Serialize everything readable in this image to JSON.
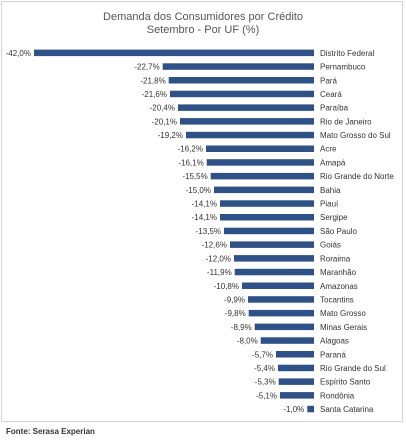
{
  "source": "Fonte: Serasa Experian",
  "chart_data": {
    "type": "bar",
    "orientation": "horizontal",
    "title": "Demanda dos Consumidores por Crédito",
    "subtitle": "Setembro - Por UF (%)",
    "color": "#2e5288",
    "xlim": [
      -42,
      0
    ],
    "categories": [
      "Distrito Federal",
      "Pernambuco",
      "Pará",
      "Ceará",
      "Paraíba",
      "Rio de Janeiro",
      "Mato Grosso do Sul",
      "Acre",
      "Amapá",
      "Rio Grande do Norte",
      "Bahia",
      "Piauí",
      "Sergipe",
      "São Paulo",
      "Goiás",
      "Roraima",
      "Maranhão",
      "Amazonas",
      "Tocantins",
      "Mato Grosso",
      "Minas Gerais",
      "Alagoas",
      "Paraná",
      "Rio Grande do Sul",
      "Espírito Santo",
      "Rondônia",
      "Santa Catarina"
    ],
    "values": [
      -42.0,
      -22.7,
      -21.8,
      -21.6,
      -20.4,
      -20.1,
      -19.2,
      -16.2,
      -16.1,
      -15.5,
      -15.0,
      -14.1,
      -14.1,
      -13.5,
      -12.6,
      -12.0,
      -11.9,
      -10.8,
      -9.9,
      -9.8,
      -8.9,
      -8.0,
      -5.7,
      -5.4,
      -5.3,
      -5.1,
      -1.0
    ],
    "labels": [
      "-42,0%",
      "-22,7%",
      "-21,8%",
      "-21,6%",
      "-20,4%",
      "-20,1%",
      "-19,2%",
      "-16,2%",
      "-16,1%",
      "-15,5%",
      "-15,0%",
      "-14,1%",
      "-14,1%",
      "-13,5%",
      "-12,6%",
      "-12,0%",
      "-11,9%",
      "-10,8%",
      "-9,9%",
      "-9,8%",
      "-8,9%",
      "-8,0%",
      "-5,7%",
      "-5,4%",
      "-5,3%",
      "-5,1%",
      "-1,0%"
    ]
  }
}
